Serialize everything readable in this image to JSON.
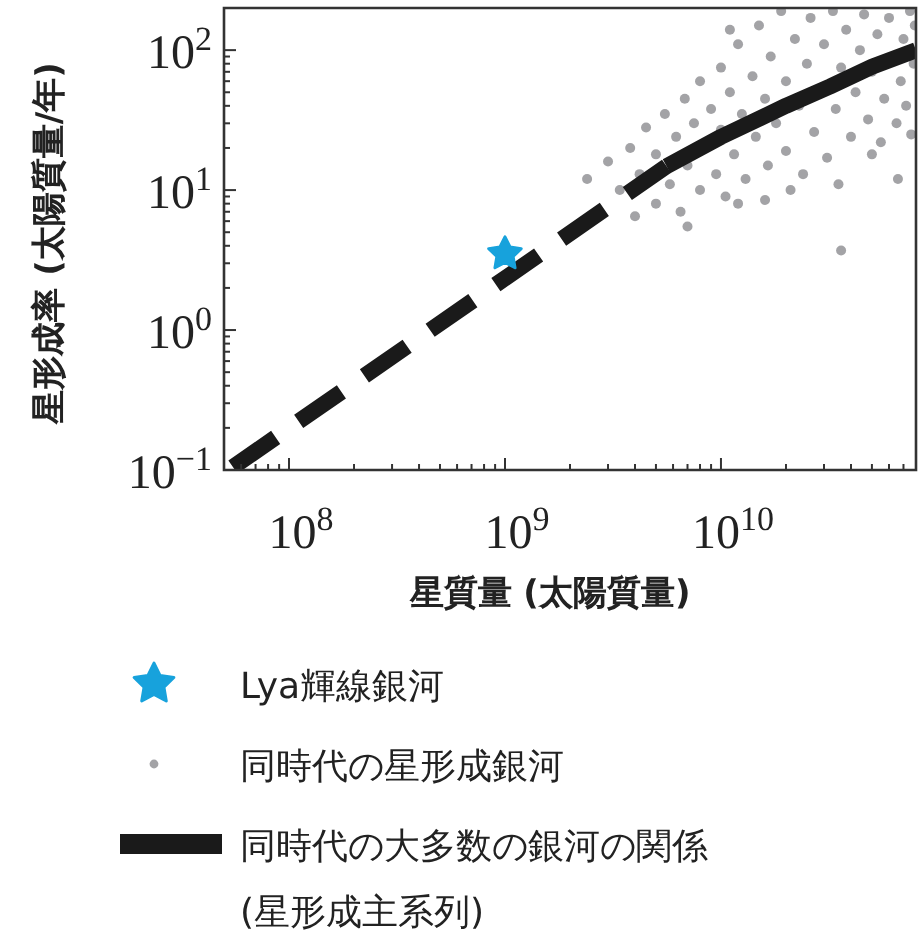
{
  "chart_data": {
    "type": "scatter",
    "xlabel": "星質量 (太陽質量)",
    "ylabel": "星形成率 (太陽質量/年)",
    "log": "xy",
    "grid": false,
    "legend": "bottom",
    "xlim": [
      50000000.0,
      80000000000.0
    ],
    "ylim": [
      0.1,
      200
    ],
    "xticks": [
      {
        "value": 100000000.0,
        "label": "10$^{8}$"
      },
      {
        "value": 1000000000.0,
        "label": "10$^{9}$"
      },
      {
        "value": 10000000000.0,
        "label": "10$^{10}$"
      }
    ],
    "yticks": [
      {
        "value": 0.1,
        "label": "10$^{−1}$"
      },
      {
        "value": 1,
        "label": "10$^{0}$"
      },
      {
        "value": 10,
        "label": "10$^{1}$"
      },
      {
        "value": 100,
        "label": "10$^{2}$"
      }
    ],
    "series": [
      {
        "name": "同時代の星形成銀河",
        "type": "scatter",
        "marker": "circle",
        "color": "#a3a3a6",
        "x": [
          3000000000.0,
          3400000000.0,
          3800000000.0,
          4200000000.0,
          4500000000.0,
          5000000000.0,
          5000000000.0,
          5500000000.0,
          5800000000.0,
          6200000000.0,
          6500000000.0,
          6800000000.0,
          7000000000.0,
          7500000000.0,
          8000000000.0,
          8000000000.0,
          9000000000.0,
          9500000000.0,
          10000000000.0,
          10000000000.0,
          10500000000.0,
          11000000000.0,
          11500000000.0,
          12000000000.0,
          12500000000.0,
          13000000000.0,
          14000000000.0,
          14500000000.0,
          15000000000.0,
          16000000000.0,
          16500000000.0,
          17000000000.0,
          18000000000.0,
          19000000000.0,
          20000000000.0,
          20000000000.0,
          22000000000.0,
          23000000000.0,
          24000000000.0,
          25000000000.0,
          26000000000.0,
          27000000000.0,
          30000000000.0,
          31000000000.0,
          33000000000.0,
          34000000000.0,
          36000000000.0,
          36000000000.0,
          38000000000.0,
          40000000000.0,
          42000000000.0,
          44000000000.0,
          46000000000.0,
          48000000000.0,
          50000000000.0,
          53000000000.0,
          55000000000.0,
          57000000000.0,
          60000000000.0,
          65000000000.0,
          68000000000.0,
          70000000000.0,
          72000000000.0,
          75000000000.0,
          76000000000.0,
          78000000000.0,
          79000000000.0,
          66000000000.0,
          21000000000.0,
          12000000000.0,
          4000000000.0,
          7000000000.0,
          2400000000.0,
          11000000000.0,
          16000000000.0,
          50000000000.0,
          35000000000.0
        ],
        "values": [
          16,
          10,
          20,
          13,
          28,
          8,
          18,
          35,
          11,
          24,
          7,
          45,
          15,
          30,
          10,
          60,
          38,
          13,
          75,
          27,
          9,
          50,
          18,
          110,
          35,
          12,
          65,
          24,
          150,
          45,
          15,
          90,
          30,
          190,
          60,
          19,
          120,
          40,
          13,
          80,
          170,
          26,
          110,
          17,
          190,
          38,
          3.7,
          75,
          140,
          24,
          50,
          100,
          180,
          32,
          70,
          130,
          22,
          45,
          170,
          30,
          60,
          120,
          40,
          190,
          25,
          80,
          150,
          12,
          10,
          8,
          6.5,
          5.5,
          12,
          140,
          8.5,
          18,
          11
        ]
      },
      {
        "name": "同時代の大多数の銀河の関係\n(星形成主系列)",
        "type": "line",
        "marker": "none",
        "line_style": "solid",
        "color": "#1a1a1a",
        "x": [
          5600000000.0,
          10000000000.0,
          20000000000.0,
          32000000000.0,
          50000000000.0,
          80000000000.0
        ],
        "values": [
          14.8,
          24,
          40,
          55,
          76,
          100
        ]
      },
      {
        "type": "line",
        "marker": "none",
        "line_style": "dashed",
        "color": "#1a1a1a",
        "x": [
          55000000.0,
          5600000000.0
        ],
        "values": [
          0.105,
          14.8
        ]
      },
      {
        "name": "Lya輝線銀河",
        "type": "scatter",
        "marker": "star",
        "color": "#17a2dc",
        "x": [
          1000000000.0
        ],
        "values": [
          3.5
        ]
      }
    ]
  }
}
